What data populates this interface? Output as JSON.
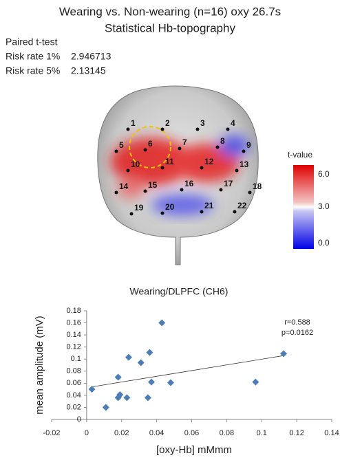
{
  "header": {
    "title": "Wearing vs. Non-wearing  (n=16) oxy 26.7s",
    "subtitle": "Statistical Hb-topography"
  },
  "stats": {
    "test": "Paired t-test",
    "rows": [
      [
        "Risk rate  1%",
        "2.946713"
      ],
      [
        "Risk rate  5%",
        "2.13145"
      ]
    ]
  },
  "channels": [
    "1",
    "2",
    "3",
    "4",
    "5",
    "6",
    "7",
    "8",
    "9",
    "10",
    "11",
    "12",
    "13",
    "14",
    "15",
    "16",
    "17",
    "18",
    "19",
    "20",
    "21",
    "22"
  ],
  "colorbar": {
    "title": "t-value",
    "range": [
      0,
      6
    ],
    "ticks": [
      {
        "value": 6,
        "label": "6.0"
      },
      {
        "value": 3,
        "label": "3.0"
      },
      {
        "value": 0,
        "label": "0.0"
      }
    ]
  },
  "chart_data": {
    "type": "scatter",
    "title": "Wearing/DLPFC (CH6)",
    "xlabel": "[oxy-Hb] mMmm",
    "ylabel": "mean amplitude (mV)",
    "x": [
      0.003,
      0.011,
      0.018,
      0.018,
      0.019,
      0.023,
      0.024,
      0.031,
      0.036,
      0.037,
      0.035,
      0.043,
      0.048,
      0.0965,
      0.1125
    ],
    "values": [
      0.05,
      0.02,
      0.07,
      0.036,
      0.041,
      0.036,
      0.103,
      0.094,
      0.111,
      0.062,
      0.036,
      0.16,
      0.061,
      0.062,
      0.109
    ],
    "color": "#4a7ebb",
    "xlim": [
      -0.02,
      0.14
    ],
    "ylim": [
      0,
      0.18
    ],
    "xticks": [
      -0.02,
      0,
      0.02,
      0.04,
      0.06,
      0.08,
      0.1,
      0.12,
      0.14
    ],
    "yticks": [
      0,
      0.02,
      0.04,
      0.06,
      0.08,
      0.1,
      0.12,
      0.14,
      0.16,
      0.18
    ],
    "annotations": [
      "r=0.588",
      "p=0.0162"
    ]
  }
}
